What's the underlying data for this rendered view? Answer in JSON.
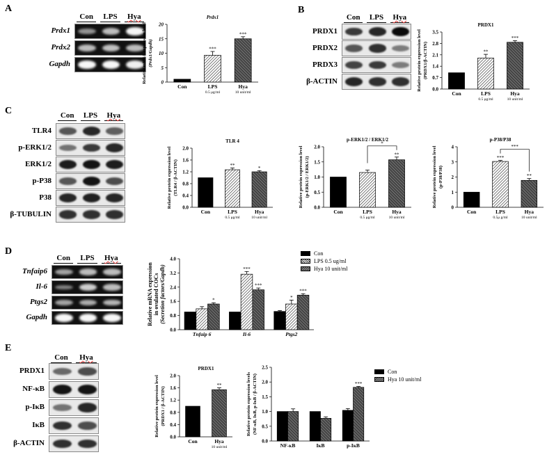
{
  "panels": {
    "A": {
      "letter": "A",
      "blot": {
        "type": "rt-pcr",
        "lanes": [
          "Con",
          "LPS",
          "Hya"
        ],
        "rows": [
          {
            "label": "Prdx1",
            "intensity": [
              0.35,
              0.6,
              0.95
            ]
          },
          {
            "label": "Prdx2",
            "intensity": [
              0.6,
              0.62,
              0.6
            ]
          },
          {
            "label": "Gapdh",
            "intensity": [
              0.95,
              0.95,
              0.9
            ]
          }
        ]
      }
    },
    "B": {
      "letter": "B",
      "blot": {
        "type": "western",
        "lanes": [
          "Con",
          "LPS",
          "Hya"
        ],
        "rows": [
          {
            "label": "PRDX1",
            "intensity": [
              0.75,
              0.85,
              1.0
            ]
          },
          {
            "label": "PRDX2",
            "intensity": [
              0.6,
              0.8,
              0.4
            ]
          },
          {
            "label": "PRDX3",
            "intensity": [
              0.7,
              0.75,
              0.4
            ]
          },
          {
            "label": "β-ACTIN",
            "intensity": [
              0.85,
              0.8,
              0.8
            ]
          }
        ]
      }
    },
    "C": {
      "letter": "C",
      "blot": {
        "type": "western",
        "lanes": [
          "Con",
          "LPS",
          "Hya"
        ],
        "rows": [
          {
            "label": "TLR4",
            "intensity": [
              0.6,
              0.85,
              0.55
            ]
          },
          {
            "label": "p-ERK1/2",
            "intensity": [
              0.45,
              0.75,
              0.85
            ]
          },
          {
            "label": "ERK1/2",
            "intensity": [
              0.9,
              0.95,
              0.9
            ]
          },
          {
            "label": "p-P38",
            "intensity": [
              0.6,
              0.95,
              0.65
            ]
          },
          {
            "label": "P38",
            "intensity": [
              0.85,
              0.88,
              0.85
            ]
          },
          {
            "label": "β-TUBULIN",
            "intensity": [
              0.8,
              0.8,
              0.8
            ]
          }
        ]
      }
    },
    "D": {
      "letter": "D",
      "blot": {
        "type": "rt-pcr",
        "lanes": [
          "Con",
          "LPS",
          "Hya"
        ],
        "rows": [
          {
            "label": "Tnfaip6",
            "intensity": [
              0.45,
              0.6,
              0.6
            ]
          },
          {
            "label": "Il-6",
            "intensity": [
              0.25,
              0.7,
              0.6
            ]
          },
          {
            "label": "Ptgs2",
            "intensity": [
              0.45,
              0.5,
              0.55
            ]
          },
          {
            "label": "Gapdh",
            "intensity": [
              0.95,
              0.95,
              0.95
            ]
          }
        ]
      }
    },
    "E": {
      "letter": "E",
      "blot": {
        "type": "western",
        "lanes": [
          "Con",
          "Hya"
        ],
        "rows": [
          {
            "label": "PRDX1",
            "intensity": [
              0.5,
              0.65
            ]
          },
          {
            "label": "NF-κB",
            "intensity": [
              0.95,
              0.95
            ]
          },
          {
            "label": "p-IκB",
            "intensity": [
              0.45,
              0.85
            ]
          },
          {
            "label": "IκB",
            "intensity": [
              0.8,
              0.65
            ]
          },
          {
            "label": "β-ACTIN",
            "intensity": [
              0.8,
              0.8
            ]
          }
        ]
      }
    }
  },
  "legends": {
    "D": [
      {
        "label": "Con",
        "fill": "solid"
      },
      {
        "label": "LPS 0.5 ug/ml",
        "fill": "light-hatch"
      },
      {
        "label": "Hya 10 unit/ml",
        "fill": "dark-hatch"
      }
    ],
    "E": [
      {
        "label": "Con",
        "fill": "solid"
      },
      {
        "label": "Hya 10 unit/ml",
        "fill": "dark-hatch"
      }
    ]
  },
  "chart_data": [
    {
      "id": "A-prdx1",
      "type": "bar",
      "title": "Prdx1",
      "title_italic": true,
      "ylabel": [
        "Relative mRNA expression level",
        "(Prdx1/Gapdh)"
      ],
      "ylim": [
        0,
        20
      ],
      "yticks": [
        "0",
        "5",
        "10",
        "15",
        "20"
      ],
      "ytick_italic": true,
      "categories": [
        "Con",
        "LPS",
        "Hya"
      ],
      "sublabels": [
        "",
        "0.5 μg/ml",
        "10 unit/ml"
      ],
      "values": [
        1.0,
        9.3,
        15.0
      ],
      "errors": [
        0,
        1.3,
        0.7
      ],
      "fills": [
        "solid",
        "light-hatch",
        "dark-hatch"
      ],
      "significance": [
        "",
        "***",
        "***"
      ]
    },
    {
      "id": "B-prdx1",
      "type": "bar",
      "title": "PRDX1",
      "ylabel": [
        "Relative protein expression level",
        "(PRDX1/β-ACTIN)"
      ],
      "ylim": [
        0,
        3.5
      ],
      "yticks": [
        "0.0",
        "0.7",
        "1.4",
        "2.1",
        "2.8",
        "3.5"
      ],
      "categories": [
        "Con",
        "LPS",
        "Hya"
      ],
      "sublabels": [
        "",
        "0.5 μg/ml",
        "10 unit/ml"
      ],
      "values": [
        1.0,
        1.9,
        2.87
      ],
      "errors": [
        0,
        0.23,
        0.1
      ],
      "fills": [
        "solid",
        "light-hatch",
        "dark-hatch"
      ],
      "significance": [
        "",
        "**",
        "***"
      ]
    },
    {
      "id": "C-tlr4",
      "type": "bar",
      "title": "TLR 4",
      "ylabel": [
        "Relative protein expression level",
        "(TLR4 / β-ACTIN)"
      ],
      "ylim": [
        0,
        2.0
      ],
      "yticks": [
        "0.0",
        "0.4",
        "0.8",
        "1.2",
        "1.6",
        "2.0"
      ],
      "categories": [
        "Con",
        "LPS",
        "Hya"
      ],
      "sublabels": [
        "",
        "0.5 μg/ml",
        "10 unit/ml"
      ],
      "values": [
        1.0,
        1.27,
        1.2
      ],
      "errors": [
        0,
        0.06,
        0.04
      ],
      "fills": [
        "solid",
        "light-hatch",
        "dark-hatch"
      ],
      "significance": [
        "",
        "**",
        "*"
      ]
    },
    {
      "id": "C-perk",
      "type": "bar",
      "title": "p-ERK1/2 / ERK1/2",
      "ylabel": [
        "Relative protein expression level",
        "(p-ERK1/2 / ERK1/2)"
      ],
      "ylim": [
        0,
        2.0
      ],
      "yticks": [
        "0.0",
        "0.5",
        "1.0",
        "1.5",
        "2.0"
      ],
      "categories": [
        "Con",
        "LPS",
        "Hya"
      ],
      "sublabels": [
        "",
        "0.5 μg/ml",
        "10 unit/ml"
      ],
      "values": [
        1.0,
        1.15,
        1.57
      ],
      "errors": [
        0,
        0.08,
        0.09
      ],
      "fills": [
        "solid",
        "light-hatch",
        "dark-hatch"
      ],
      "significance": [
        "",
        "",
        "**"
      ],
      "brackets": [
        {
          "from": 1,
          "to": 2,
          "label": "*"
        }
      ]
    },
    {
      "id": "C-pp38",
      "type": "bar",
      "title": "p-P38/P38",
      "ylabel": [
        "Relative protein expression level",
        "(p-P38/P38)"
      ],
      "ylim": [
        0,
        4
      ],
      "yticks": [
        "0",
        "1",
        "2",
        "3",
        "4"
      ],
      "categories": [
        "Con",
        "LPS",
        "Hya"
      ],
      "sublabels": [
        "",
        "0.5μ g/ml",
        "10 unit/ml"
      ],
      "values": [
        1.0,
        3.03,
        1.78
      ],
      "errors": [
        0,
        0.07,
        0.12
      ],
      "fills": [
        "solid",
        "light-hatch",
        "dark-hatch"
      ],
      "significance": [
        "",
        "***",
        "**"
      ],
      "brackets": [
        {
          "from": 1,
          "to": 2,
          "label": "***"
        }
      ]
    },
    {
      "id": "D-secretion",
      "type": "bar",
      "title": "",
      "ylabel": [
        "Relative mRNA expression",
        "in ovulated COCs",
        "(Secretion factors/Gapdh)"
      ],
      "ylim": [
        0,
        4.0
      ],
      "yticks": [
        "0.0",
        "0.8",
        "1.6",
        "2.4",
        "3.2",
        "4.0"
      ],
      "categories": [
        "Tnfaip 6",
        "Il-6",
        "Ptgs2"
      ],
      "categories_italic": true,
      "series": [
        {
          "name": "Con",
          "fill": "solid",
          "values": [
            1.0,
            1.0,
            1.03
          ],
          "errors": [
            0,
            0,
            0.05
          ],
          "significance": [
            "",
            "",
            ""
          ]
        },
        {
          "name": "LPS 0.5 ug/ml",
          "fill": "light-hatch",
          "values": [
            1.18,
            3.13,
            1.45
          ],
          "errors": [
            0.12,
            0.15,
            0.22
          ],
          "significance": [
            "",
            "***",
            "*"
          ]
        },
        {
          "name": "Hya 10 unit/ml",
          "fill": "dark-hatch",
          "values": [
            1.45,
            2.25,
            1.95
          ],
          "errors": [
            0.07,
            0.1,
            0.08
          ],
          "significance": [
            "*",
            "***",
            "***"
          ]
        }
      ]
    },
    {
      "id": "E-prdx1",
      "type": "bar",
      "title": "PRDX1",
      "ylabel": [
        "Relative protein expression level",
        "(PRDX1 / β-ACTIN)"
      ],
      "ylim": [
        0,
        2.0
      ],
      "yticks": [
        "0.0",
        "0.4",
        "0.8",
        "1.2",
        "1.6",
        "2.0"
      ],
      "categories": [
        "Con",
        "Hya"
      ],
      "sublabels": [
        "",
        "10 unit/ml"
      ],
      "values": [
        1.0,
        1.54
      ],
      "errors": [
        0,
        0.06
      ],
      "fills": [
        "solid",
        "dark-hatch"
      ],
      "significance": [
        "",
        "**"
      ]
    },
    {
      "id": "E-nfkb",
      "type": "bar",
      "title": "",
      "ylabel": [
        "Relative protein expression levels",
        "(NF-κB, IκB, p-IκB / β-ACTIN)"
      ],
      "ylim": [
        0,
        2.5
      ],
      "yticks": [
        "0.0",
        "0.5",
        "1.0",
        "1.5",
        "2.0",
        "2.5"
      ],
      "categories": [
        "NF-κB",
        "IκB",
        "p-IκB"
      ],
      "series": [
        {
          "name": "Con",
          "fill": "solid",
          "values": [
            1.0,
            1.0,
            1.04
          ],
          "errors": [
            0,
            0,
            0.06
          ],
          "significance": [
            "",
            "",
            ""
          ]
        },
        {
          "name": "Hya 10 unit/ml",
          "fill": "dark-hatch",
          "values": [
            1.0,
            0.77,
            1.82
          ],
          "errors": [
            0.09,
            0.05,
            0.03
          ],
          "significance": [
            "",
            "",
            "***"
          ]
        }
      ]
    }
  ]
}
